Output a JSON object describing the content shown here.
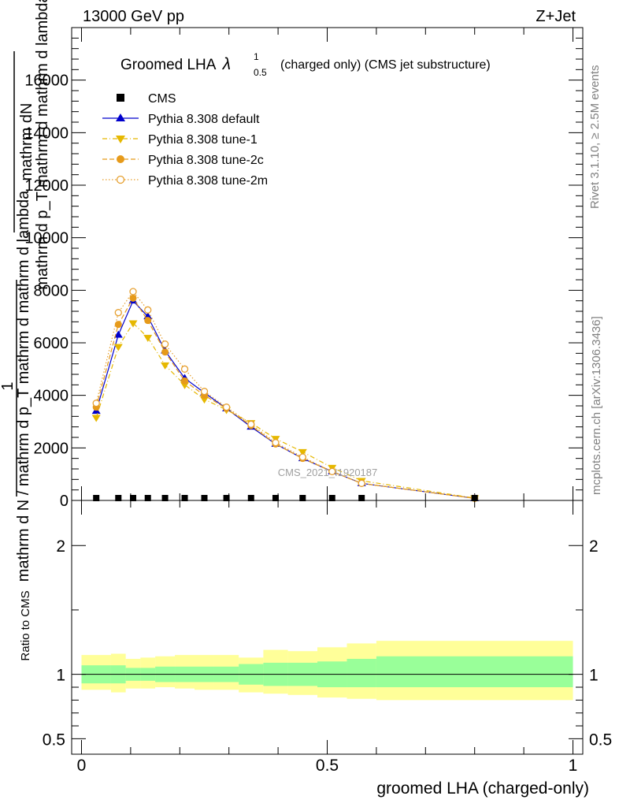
{
  "header": {
    "left": "13000 GeV pp",
    "right": "Z+Jet"
  },
  "side_labels": {
    "rivet": "Rivet 3.1.10, ≥ 2.5M events",
    "mcplots": "mcplots.cern.ch [arXiv:1306.3436]"
  },
  "watermark": "CMS_2021_I1920187",
  "plot_title": {
    "main": "Groomed LHA",
    "symbol": "λ",
    "sup": "1",
    "sub": "0.5",
    "tail": "(charged only) (CMS jet substructure)"
  },
  "y_axis_label": {
    "top_num": "mathrm dN",
    "top_den": "mathrm d p_T mathrm d mathrm d lambda",
    "one": "1",
    "den": "mathrm d N / mathrm d p_T mathrm d mathrm d lambda"
  },
  "ratio_ylabel": "Ratio to CMS",
  "xlabel": "groomed LHA (charged-only)",
  "legend": [
    {
      "name": "CMS",
      "marker": "square",
      "color": "#000000",
      "line": "none"
    },
    {
      "name": "Pythia 8.308 default",
      "marker": "triangle-up",
      "color": "#0000cc",
      "line": "solid"
    },
    {
      "name": "Pythia 8.308 tune-1",
      "marker": "triangle-down",
      "color": "#e6b800",
      "line": "dashdot"
    },
    {
      "name": "Pythia 8.308 tune-2c",
      "marker": "circle",
      "color": "#e69a1a",
      "line": "dashed"
    },
    {
      "name": "Pythia 8.308 tune-2m",
      "marker": "circle-open",
      "color": "#e6a030",
      "line": "dotted"
    }
  ],
  "chart_data": [
    {
      "type": "line",
      "panel": "main",
      "xlim": [
        -0.02,
        1.02
      ],
      "ylim": [
        0,
        18000
      ],
      "x_tick_labels": [],
      "y_ticks": [
        0,
        2000,
        4000,
        6000,
        8000,
        10000,
        12000,
        14000,
        16000
      ],
      "y_tick_labels": [
        "0",
        "2000",
        "4000",
        "6000",
        "8000",
        "10000",
        "12000",
        "14000",
        "16000"
      ],
      "x": [
        0.03,
        0.075,
        0.105,
        0.135,
        0.17,
        0.21,
        0.25,
        0.295,
        0.345,
        0.395,
        0.45,
        0.51,
        0.57,
        0.8
      ],
      "series": [
        {
          "name": "CMS",
          "values": [
            20,
            25,
            30,
            30,
            25,
            20,
            20,
            15,
            15,
            12,
            10,
            10,
            10,
            0
          ]
        },
        {
          "name": "Pythia 8.308 default",
          "values": [
            3400,
            6300,
            7600,
            7000,
            5700,
            4650,
            4100,
            3500,
            2800,
            2150,
            1600,
            1100,
            650,
            80
          ]
        },
        {
          "name": "Pythia 8.308 tune-1",
          "values": [
            3150,
            5850,
            6750,
            6200,
            5150,
            4400,
            3850,
            3450,
            2950,
            2350,
            1850,
            1250,
            750,
            90
          ]
        },
        {
          "name": "Pythia 8.308 tune-2c",
          "values": [
            3550,
            6700,
            7700,
            6850,
            5650,
            4550,
            4000,
            3500,
            2850,
            2150,
            1600,
            1100,
            650,
            80
          ]
        },
        {
          "name": "Pythia 8.308 tune-2m",
          "values": [
            3700,
            7150,
            7950,
            7250,
            5950,
            5000,
            4150,
            3550,
            2900,
            2200,
            1650,
            1100,
            650,
            80
          ]
        }
      ]
    },
    {
      "type": "area",
      "panel": "ratio",
      "xlim": [
        -0.02,
        1.02
      ],
      "ylim": [
        0.38,
        2.35
      ],
      "x_ticks": [
        0,
        0.5,
        1
      ],
      "x_tick_labels": [
        "0",
        "0.5",
        "1"
      ],
      "y_ticks": [
        0.5,
        1,
        2
      ],
      "y_tick_labels": [
        "0.5",
        "1",
        "2"
      ],
      "bin_edges": [
        0,
        0.06,
        0.09,
        0.12,
        0.15,
        0.19,
        0.23,
        0.27,
        0.32,
        0.37,
        0.42,
        0.48,
        0.54,
        0.6,
        1.0
      ],
      "inner_band": {
        "name": "stat",
        "color": "#99ff99",
        "low": [
          0.93,
          0.93,
          0.95,
          0.95,
          0.94,
          0.94,
          0.94,
          0.94,
          0.92,
          0.91,
          0.91,
          0.9,
          0.9,
          0.9
        ],
        "high": [
          1.07,
          1.07,
          1.05,
          1.05,
          1.06,
          1.06,
          1.06,
          1.06,
          1.08,
          1.09,
          1.09,
          1.1,
          1.12,
          1.14
        ]
      },
      "outer_band": {
        "name": "total",
        "color": "#ffff99",
        "low": [
          0.88,
          0.86,
          0.89,
          0.89,
          0.9,
          0.89,
          0.88,
          0.88,
          0.86,
          0.85,
          0.84,
          0.82,
          0.81,
          0.8
        ],
        "high": [
          1.15,
          1.16,
          1.12,
          1.13,
          1.14,
          1.15,
          1.15,
          1.15,
          1.13,
          1.19,
          1.18,
          1.21,
          1.24,
          1.26
        ]
      },
      "reference_line": 1
    }
  ]
}
